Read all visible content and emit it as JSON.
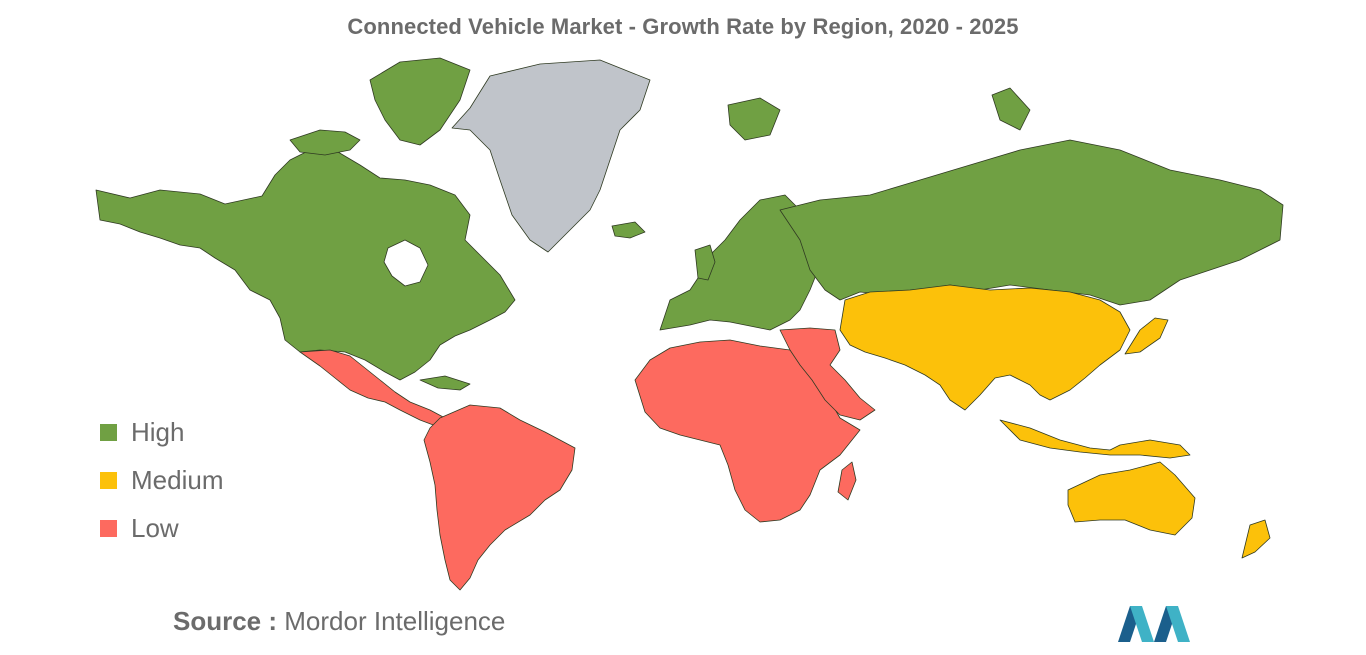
{
  "title": "Connected Vehicle Market - Growth Rate by Region, 2020 - 2025",
  "legend": [
    {
      "label": "High",
      "color": "#70a043"
    },
    {
      "label": "Medium",
      "color": "#fcc10a"
    },
    {
      "label": "Low",
      "color": "#fd6a5f"
    }
  ],
  "no_data_color": "#c0c4ca",
  "regions": {
    "north_america": "High",
    "europe": "High",
    "russia": "High",
    "greenland": "No data",
    "latin_america": "Low",
    "middle_east_africa": "Low",
    "asia_pacific": "Medium"
  },
  "source": {
    "label": "Source :",
    "text": "Mordor Intelligence"
  },
  "logo_icon": "mordor-intelligence-logo-icon"
}
